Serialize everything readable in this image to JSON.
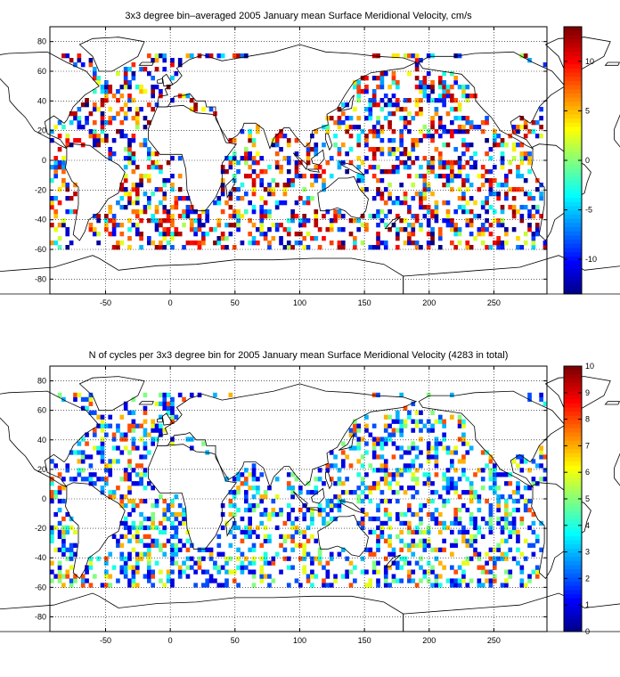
{
  "panels": [
    {
      "title": "3x3 degree bin–averaged 2005 January mean Surface Meridional Velocity, cm/s",
      "xticks": [
        "-50",
        "0",
        "50",
        "100",
        "150",
        "200",
        "250"
      ],
      "yticks": [
        "80",
        "60",
        "40",
        "20",
        "0",
        "-20",
        "-40",
        "-60",
        "-80"
      ],
      "colorbar": {
        "ticks": [
          "10",
          "5",
          "0",
          "-5",
          "-10"
        ],
        "range": [
          -13.5,
          13.5
        ],
        "colormap": "jet"
      }
    },
    {
      "title": "N of cycles per 3x3 degree bin for 2005 January mean Surface Meridional Velocity (4283 in total)",
      "xticks": [
        "-50",
        "0",
        "50",
        "100",
        "150",
        "200",
        "250"
      ],
      "yticks": [
        "80",
        "60",
        "40",
        "20",
        "0",
        "-20",
        "-40",
        "-60",
        "-80"
      ],
      "colorbar": {
        "ticks": [
          "10",
          "9",
          "8",
          "7",
          "6",
          "5",
          "4",
          "3",
          "2",
          "1",
          "0"
        ],
        "range": [
          0,
          10
        ],
        "colormap": "jet"
      }
    }
  ],
  "chart_data": [
    {
      "type": "heatmap",
      "title": "3x3 degree bin–averaged 2005 January mean Surface Meridional Velocity, cm/s",
      "xlim": [
        -93,
        291
      ],
      "ylim": [
        -90,
        90
      ],
      "grid": true,
      "bin_size_deg": 3,
      "value_range": [
        -13.5,
        13.5
      ],
      "legend": "colorbar-right"
    },
    {
      "type": "heatmap",
      "title": "N of cycles per 3x3 degree bin for 2005 January mean Surface Meridional Velocity (4283 in total)",
      "xlim": [
        -93,
        291
      ],
      "ylim": [
        -90,
        90
      ],
      "grid": true,
      "bin_size_deg": 3,
      "value_range": [
        0,
        10
      ],
      "legend": "colorbar-right"
    }
  ]
}
